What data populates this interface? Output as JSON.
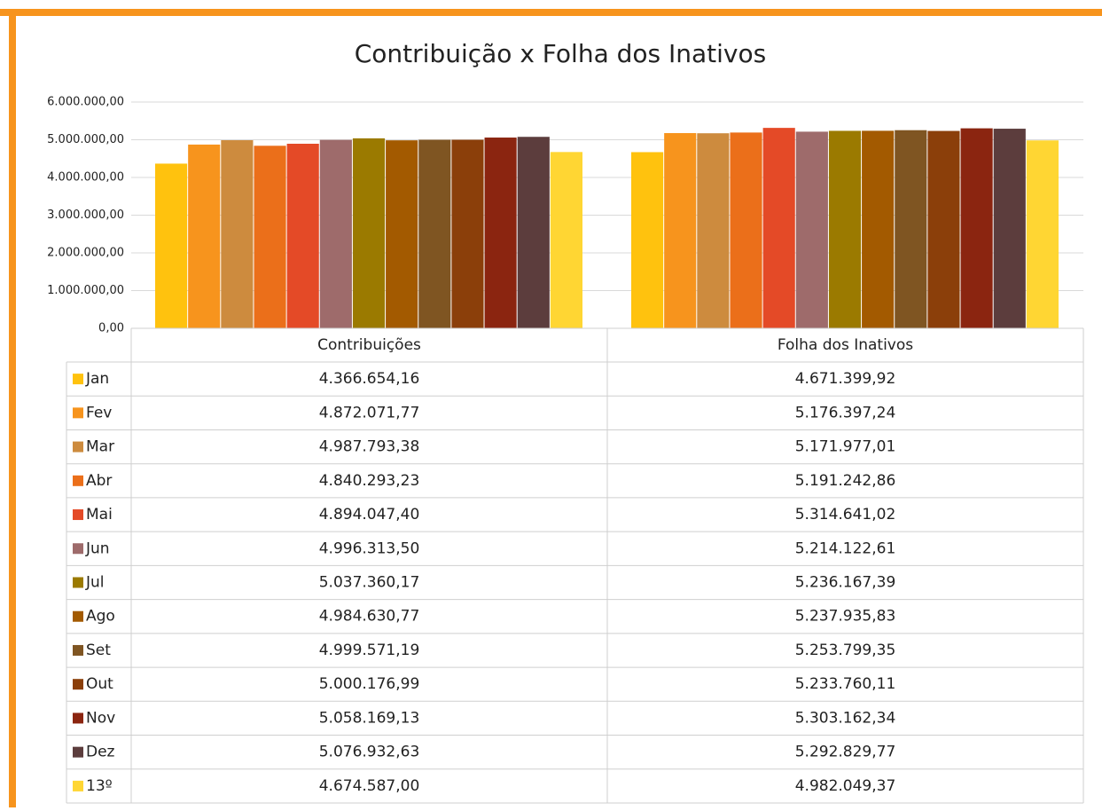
{
  "chart_data": {
    "type": "bar",
    "title": "Contribuição x Folha dos Inativos",
    "categories": [
      "Contribuições",
      "Folha dos Inativos"
    ],
    "ylim": [
      0,
      6000000
    ],
    "yticks": [
      {
        "value": 0,
        "label": "0,00"
      },
      {
        "value": 1000000,
        "label": "1.000.000,00"
      },
      {
        "value": 2000000,
        "label": "2.000.000,00"
      },
      {
        "value": 3000000,
        "label": "3.000.000,00"
      },
      {
        "value": 4000000,
        "label": "4.000.000,00"
      },
      {
        "value": 5000000,
        "label": "5.000.000,00"
      },
      {
        "value": 6000000,
        "label": "6.000.000,00"
      }
    ],
    "grid": true,
    "series": [
      {
        "name": "Jan",
        "color": "#FFC20E",
        "values": [
          4366654.16,
          4671399.92
        ],
        "value_labels": [
          "4.366.654,16",
          "4.671.399,92"
        ]
      },
      {
        "name": "Fev",
        "color": "#F7941D",
        "values": [
          4872071.77,
          5176397.24
        ],
        "value_labels": [
          "4.872.071,77",
          "5.176.397,24"
        ]
      },
      {
        "name": "Mar",
        "color": "#CD8B3E",
        "values": [
          4987793.38,
          5171977.01
        ],
        "value_labels": [
          "4.987.793,38",
          "5.171.977,01"
        ]
      },
      {
        "name": "Abr",
        "color": "#EB6F1A",
        "values": [
          4840293.23,
          5191242.86
        ],
        "value_labels": [
          "4.840.293,23",
          "5.191.242,86"
        ]
      },
      {
        "name": "Mai",
        "color": "#E44A27",
        "values": [
          4894047.4,
          5314641.02
        ],
        "value_labels": [
          "4.894.047,40",
          "5.314.641,02"
        ]
      },
      {
        "name": "Jun",
        "color": "#9E6B6B",
        "values": [
          4996313.5,
          5214122.61
        ],
        "value_labels": [
          "4.996.313,50",
          "5.214.122,61"
        ]
      },
      {
        "name": "Jul",
        "color": "#9B7A00",
        "values": [
          5037360.17,
          5236167.39
        ],
        "value_labels": [
          "5.037.360,17",
          "5.236.167,39"
        ]
      },
      {
        "name": "Ago",
        "color": "#A35A00",
        "values": [
          4984630.77,
          5237935.83
        ],
        "value_labels": [
          "4.984.630,77",
          "5.237.935,83"
        ]
      },
      {
        "name": "Set",
        "color": "#7F5522",
        "values": [
          4999571.19,
          5253799.35
        ],
        "value_labels": [
          "4.999.571,19",
          "5.253.799,35"
        ]
      },
      {
        "name": "Out",
        "color": "#8B3F0A",
        "values": [
          5000176.99,
          5233760.11
        ],
        "value_labels": [
          "5.000.176,99",
          "5.233.760,11"
        ]
      },
      {
        "name": "Nov",
        "color": "#8B2510",
        "values": [
          5058169.13,
          5303162.34
        ],
        "value_labels": [
          "5.058.169,13",
          "5.303.162,34"
        ]
      },
      {
        "name": "Dez",
        "color": "#5C3D3D",
        "values": [
          5076932.63,
          5292829.77
        ],
        "value_labels": [
          "5.076.932,63",
          "5.292.829,77"
        ]
      },
      {
        "name": "13º",
        "color": "#FFD633",
        "values": [
          4674587.0,
          4982049.37
        ],
        "value_labels": [
          "4.674.587,00",
          "4.982.049,37"
        ]
      }
    ]
  }
}
